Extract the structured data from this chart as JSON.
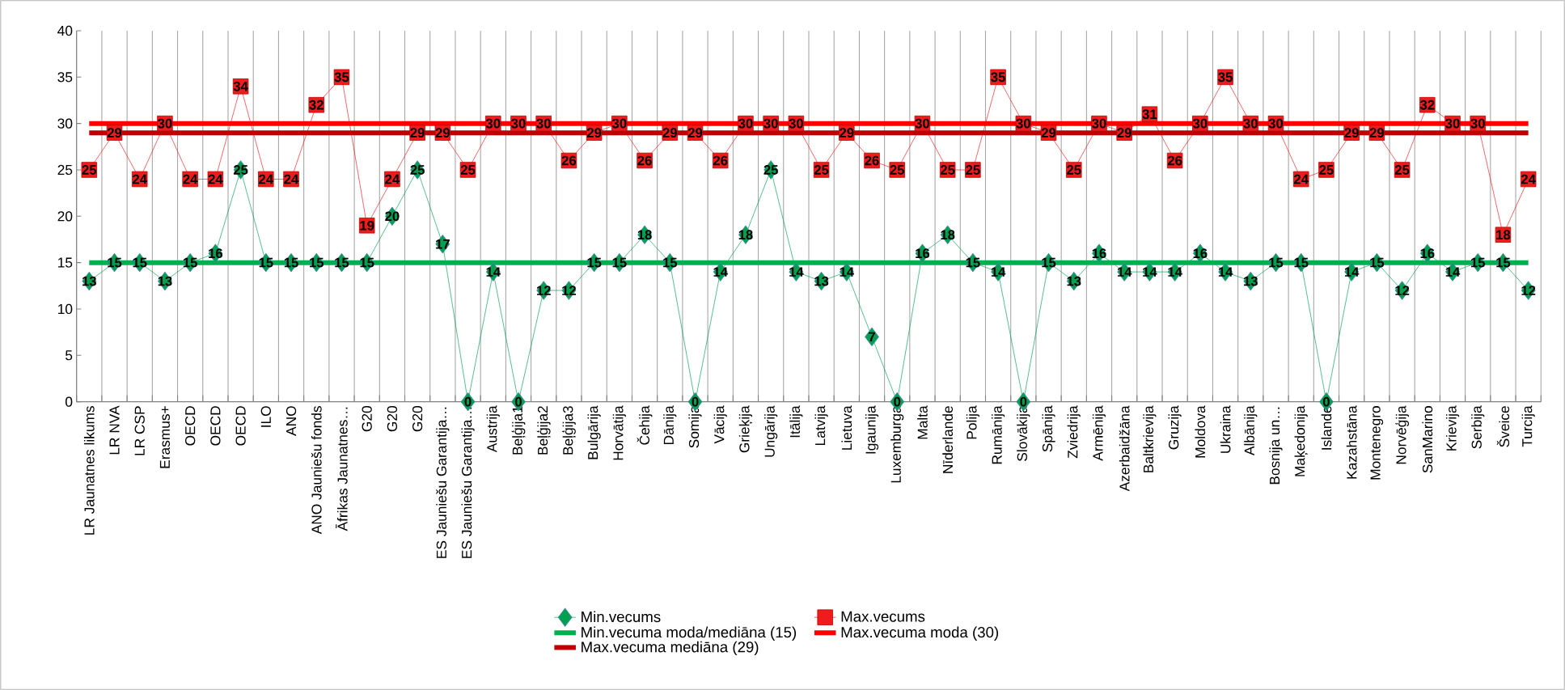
{
  "chart_data": {
    "type": "line",
    "categories": [
      "LR Jaunatnes likums",
      "LR NVA",
      "LR CSP",
      "Erasmus+",
      "OECD",
      "OECD",
      "OECD",
      "ILO",
      "ANO",
      "ANO Jauniešu fonds",
      "Āfrikas Jaunatnes…",
      "G20",
      "G20",
      "G20",
      "ES Jauniešu Garantija…",
      "ES Jauniešu Garantija…",
      "Austrija",
      "Beļģija1",
      "Beļģija2",
      "Beļģija3",
      "Bulgārija",
      "Horvātija",
      "Čehija",
      "Dānija",
      "Somija",
      "Vācija",
      "Grieķija",
      "Ungārija",
      "Itālija",
      "Latvija",
      "Lietuva",
      "Igaunija",
      "Luxemburga",
      "Malta",
      "Nīderlande",
      "Polija",
      "Rumānija",
      "Slovākija",
      "Spānija",
      "Zviedrija",
      "Armēnija",
      "Azerbaidžāna",
      "Baltkrievija",
      "Gruzija",
      "Moldova",
      "Ukraina",
      "Albānija",
      "Bosnija un…",
      "Maķedonija",
      "Islande",
      "Kazahstāna",
      "Montenegro",
      "Norvēģija",
      "SanMarino",
      "Krievija",
      "Serbija",
      "Šveice",
      "Turcija"
    ],
    "series": [
      {
        "name": "Min.vecums",
        "marker": "diamond",
        "color": "#00a050",
        "values": [
          13,
          15,
          15,
          13,
          15,
          16,
          25,
          15,
          15,
          15,
          15,
          15,
          20,
          25,
          17,
          0,
          14,
          0,
          12,
          12,
          15,
          15,
          18,
          15,
          0,
          14,
          18,
          25,
          14,
          13,
          14,
          7,
          0,
          16,
          18,
          15,
          14,
          0,
          15,
          13,
          16,
          14,
          14,
          14,
          16,
          14,
          13,
          15,
          15,
          0,
          14,
          15,
          12,
          16,
          14,
          15,
          15,
          12
        ],
        "value_labels": [
          "13",
          "15",
          "15",
          "13",
          "15",
          "16",
          "25",
          "15",
          "15",
          "15",
          "15",
          "15",
          "20",
          "25",
          "17",
          "0",
          "14",
          "0",
          "12",
          "12",
          "15",
          "15",
          "18",
          "15",
          "0",
          "14",
          "18",
          "25",
          "14",
          "13",
          "14",
          "7",
          "0",
          "16",
          "18",
          "15",
          "14",
          "0",
          "15",
          "13",
          "16",
          "14",
          "14",
          "14",
          "16",
          "14",
          "13",
          "15",
          "15",
          "0",
          "14",
          "15",
          "12",
          "16",
          "14",
          "15",
          "15",
          "12"
        ]
      },
      {
        "name": "Max.vecums",
        "marker": "square",
        "color": "#ee1c1c",
        "values": [
          25,
          29,
          24,
          30,
          24,
          24,
          34,
          24,
          24,
          32,
          35,
          19,
          24,
          29,
          29,
          25,
          30,
          30,
          30,
          26,
          29,
          30,
          26,
          29,
          29,
          26,
          30,
          30,
          30,
          25,
          29,
          26,
          25,
          30,
          25,
          25,
          35,
          30,
          29,
          25,
          30,
          29,
          31,
          26,
          30,
          35,
          30,
          30,
          24,
          25,
          29,
          29,
          25,
          32,
          30,
          30,
          18,
          24
        ],
        "value_labels": [
          "25",
          "29",
          "24",
          "30",
          "24",
          "24",
          "34",
          "24",
          "24",
          "32",
          "35",
          "19",
          "24",
          "29",
          "29",
          "25",
          "30",
          "30",
          "30",
          "26",
          "29",
          "30",
          "26",
          "29",
          "29",
          "26",
          "30",
          "30",
          "30",
          "25",
          "29",
          "26",
          "25",
          "30",
          "25",
          "25",
          "35",
          "30",
          "29",
          "25",
          "30",
          "29",
          "31",
          "26",
          "30",
          "35",
          "30",
          "30",
          "24",
          "25",
          "29",
          "29",
          "25",
          "32",
          "30",
          "30",
          "18",
          "24"
        ]
      },
      {
        "name": "Min.vecuma moda/mediāna (15)",
        "marker": "none",
        "color": "#00b050",
        "values": [
          15,
          15,
          15,
          15,
          15,
          15,
          15,
          15,
          15,
          15,
          15,
          15,
          15,
          15,
          15,
          15,
          15,
          15,
          15,
          15,
          15,
          15,
          15,
          15,
          15,
          15,
          15,
          15,
          15,
          15,
          15,
          15,
          15,
          15,
          15,
          15,
          15,
          15,
          15,
          15,
          15,
          15,
          15,
          15,
          15,
          15,
          15,
          15,
          15,
          15,
          15,
          15,
          15,
          15,
          15,
          15,
          15,
          15
        ]
      },
      {
        "name": "Max.vecuma moda (30)",
        "marker": "none",
        "color": "#ff0000",
        "values": [
          30,
          30,
          30,
          30,
          30,
          30,
          30,
          30,
          30,
          30,
          30,
          30,
          30,
          30,
          30,
          30,
          30,
          30,
          30,
          30,
          30,
          30,
          30,
          30,
          30,
          30,
          30,
          30,
          30,
          30,
          30,
          30,
          30,
          30,
          30,
          30,
          30,
          30,
          30,
          30,
          30,
          30,
          30,
          30,
          30,
          30,
          30,
          30,
          30,
          30,
          30,
          30,
          30,
          30,
          30,
          30,
          30,
          30
        ]
      },
      {
        "name": "Max.vecuma mediāna (29)",
        "marker": "none",
        "color": "#c00000",
        "values": [
          29,
          29,
          29,
          29,
          29,
          29,
          29,
          29,
          29,
          29,
          29,
          29,
          29,
          29,
          29,
          29,
          29,
          29,
          29,
          29,
          29,
          29,
          29,
          29,
          29,
          29,
          29,
          29,
          29,
          29,
          29,
          29,
          29,
          29,
          29,
          29,
          29,
          29,
          29,
          29,
          29,
          29,
          29,
          29,
          29,
          29,
          29,
          29,
          29,
          29,
          29,
          29,
          29,
          29,
          29,
          29,
          29,
          29
        ]
      }
    ],
    "ylim": [
      0,
      40
    ],
    "yticks": [
      0,
      5,
      10,
      15,
      20,
      25,
      30,
      35,
      40
    ],
    "grid": "x",
    "legend": "bottom",
    "line_style": "solid"
  }
}
